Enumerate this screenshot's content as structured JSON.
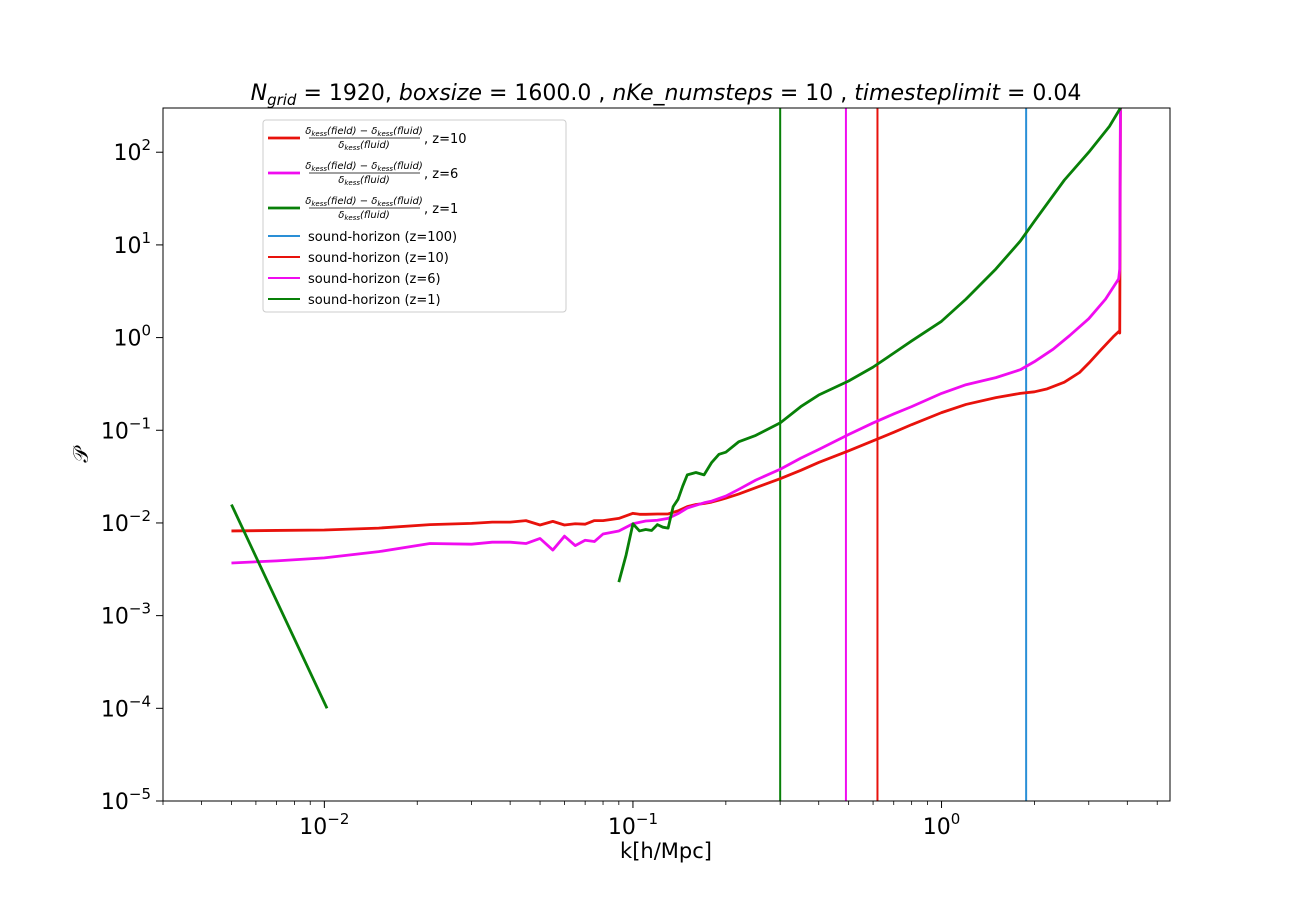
{
  "chart_data": {
    "type": "line",
    "title": {
      "parts": [
        {
          "t": "N",
          "style": "italic"
        },
        {
          "t": "grid",
          "style": "sub"
        },
        {
          "t": " = 1920, ",
          "style": "upright"
        },
        {
          "t": "boxsize",
          "style": "italic"
        },
        {
          "t": " = 1600.0 , ",
          "style": "upright"
        },
        {
          "t": "nKe_numsteps",
          "style": "italic"
        },
        {
          "t": " = 10 , ",
          "style": "upright"
        },
        {
          "t": "timesteplimit",
          "style": "italic"
        },
        {
          "t": " = 0.04",
          "style": "upright"
        }
      ]
    },
    "xlabel": "k[h/Mpc]",
    "ylabel": "𝒫",
    "xscale": "log",
    "yscale": "log",
    "xlim": [
      0.003,
      5.5
    ],
    "ylim": [
      1e-05,
      300
    ],
    "x_ticks": [
      {
        "value": 0.01,
        "base": "10",
        "exp": "−2"
      },
      {
        "value": 0.1,
        "base": "10",
        "exp": "−1"
      },
      {
        "value": 1,
        "base": "10",
        "exp": "0"
      }
    ],
    "y_ticks": [
      {
        "value": 1e-05,
        "base": "10",
        "exp": "−5"
      },
      {
        "value": 0.0001,
        "base": "10",
        "exp": "−4"
      },
      {
        "value": 0.001,
        "base": "10",
        "exp": "−3"
      },
      {
        "value": 0.01,
        "base": "10",
        "exp": "−2"
      },
      {
        "value": 0.1,
        "base": "10",
        "exp": "−1"
      },
      {
        "value": 1,
        "base": "10",
        "exp": "0"
      },
      {
        "value": 10,
        "base": "10",
        "exp": "1"
      },
      {
        "value": 100,
        "base": "10",
        "exp": "2"
      }
    ],
    "grid": false,
    "legend_position": "upper-left",
    "legend_fraction": {
      "num_a": "δ",
      "num_a_sub": "kess",
      "num_a_arg": "(field)",
      "minus": " − ",
      "num_b": "δ",
      "num_b_sub": "kess",
      "num_b_arg": "(fluid)",
      "den": "δ",
      "den_sub": "kess",
      "den_arg": "(fluid)"
    },
    "series": [
      {
        "name": "z=10",
        "legend_kind": "fraction",
        "color": "#e8120c",
        "x": [
          0.005,
          0.007,
          0.01,
          0.015,
          0.022,
          0.03,
          0.035,
          0.04,
          0.045,
          0.05,
          0.055,
          0.06,
          0.065,
          0.07,
          0.075,
          0.08,
          0.09,
          0.1,
          0.105,
          0.11,
          0.12,
          0.13,
          0.14,
          0.15,
          0.16,
          0.17,
          0.18,
          0.19,
          0.2,
          0.22,
          0.25,
          0.3,
          0.35,
          0.4,
          0.5,
          0.6,
          0.7,
          0.8,
          1.0,
          1.2,
          1.5,
          1.8,
          2.0,
          2.2,
          2.5,
          2.8,
          3.0,
          3.3,
          3.6,
          3.75,
          3.78,
          3.8
        ],
        "y": [
          0.0082,
          0.0083,
          0.0084,
          0.0088,
          0.0096,
          0.0099,
          0.0102,
          0.0102,
          0.0106,
          0.0095,
          0.0104,
          0.0095,
          0.0098,
          0.0097,
          0.0106,
          0.0106,
          0.0112,
          0.0127,
          0.0124,
          0.0124,
          0.0125,
          0.0125,
          0.0135,
          0.015,
          0.0158,
          0.0162,
          0.0168,
          0.0176,
          0.0185,
          0.0205,
          0.024,
          0.03,
          0.037,
          0.045,
          0.06,
          0.077,
          0.095,
          0.115,
          0.155,
          0.19,
          0.225,
          0.25,
          0.26,
          0.28,
          0.33,
          0.42,
          0.53,
          0.75,
          1.02,
          1.16,
          1.12,
          300
        ]
      },
      {
        "name": "z=6",
        "legend_kind": "fraction",
        "color": "#f00cf0",
        "x": [
          0.005,
          0.007,
          0.01,
          0.015,
          0.022,
          0.03,
          0.035,
          0.04,
          0.045,
          0.05,
          0.055,
          0.06,
          0.065,
          0.07,
          0.075,
          0.08,
          0.09,
          0.1,
          0.11,
          0.12,
          0.13,
          0.14,
          0.15,
          0.16,
          0.17,
          0.18,
          0.2,
          0.22,
          0.25,
          0.3,
          0.35,
          0.4,
          0.5,
          0.6,
          0.7,
          0.8,
          1.0,
          1.2,
          1.5,
          1.8,
          2.0,
          2.3,
          2.6,
          3.0,
          3.4,
          3.75,
          3.78,
          3.8
        ],
        "y": [
          0.0037,
          0.0039,
          0.0042,
          0.0049,
          0.006,
          0.0059,
          0.0062,
          0.0062,
          0.006,
          0.0068,
          0.0051,
          0.0072,
          0.0057,
          0.0065,
          0.0063,
          0.0076,
          0.0082,
          0.0098,
          0.0105,
          0.0107,
          0.0112,
          0.0126,
          0.0145,
          0.0155,
          0.0165,
          0.0172,
          0.0195,
          0.023,
          0.029,
          0.038,
          0.05,
          0.062,
          0.09,
          0.12,
          0.15,
          0.18,
          0.25,
          0.31,
          0.37,
          0.45,
          0.55,
          0.75,
          1.05,
          1.6,
          2.6,
          4.3,
          5.5,
          300
        ]
      },
      {
        "name": "z=1",
        "legend_kind": "fraction",
        "color": "#088008",
        "segments": [
          {
            "x": [
              0.005,
              0.0102
            ],
            "y": [
              0.0158,
              0.0001
            ]
          },
          {
            "x": [
              0.09,
              0.095,
              0.1,
              0.105,
              0.11,
              0.115,
              0.12,
              0.125,
              0.13,
              0.135,
              0.14,
              0.145,
              0.15,
              0.16,
              0.17,
              0.18,
              0.19,
              0.2,
              0.22,
              0.25,
              0.3,
              0.35,
              0.4,
              0.5,
              0.6,
              0.7,
              0.8,
              1.0,
              1.2,
              1.5,
              1.8,
              2.0,
              2.5,
              3.0,
              3.5,
              3.8
            ],
            "y": [
              0.0023,
              0.0045,
              0.0098,
              0.0082,
              0.0085,
              0.0083,
              0.0096,
              0.009,
              0.0088,
              0.015,
              0.018,
              0.025,
              0.033,
              0.035,
              0.033,
              0.045,
              0.055,
              0.058,
              0.075,
              0.088,
              0.12,
              0.18,
              0.24,
              0.34,
              0.48,
              0.68,
              0.92,
              1.5,
              2.6,
              5.5,
              11,
              18,
              50,
              100,
              190,
              300
            ]
          }
        ]
      }
    ],
    "vlines": [
      {
        "name": "sound-horizon (z=100)",
        "x": 1.88,
        "color": "#2a8fd6"
      },
      {
        "name": "sound-horizon (z=10)",
        "x": 0.62,
        "color": "#e8120c"
      },
      {
        "name": "sound-horizon (z=6)",
        "x": 0.49,
        "color": "#f00cf0"
      },
      {
        "name": "sound-horizon (z=1)",
        "x": 0.3,
        "color": "#088008"
      }
    ]
  }
}
